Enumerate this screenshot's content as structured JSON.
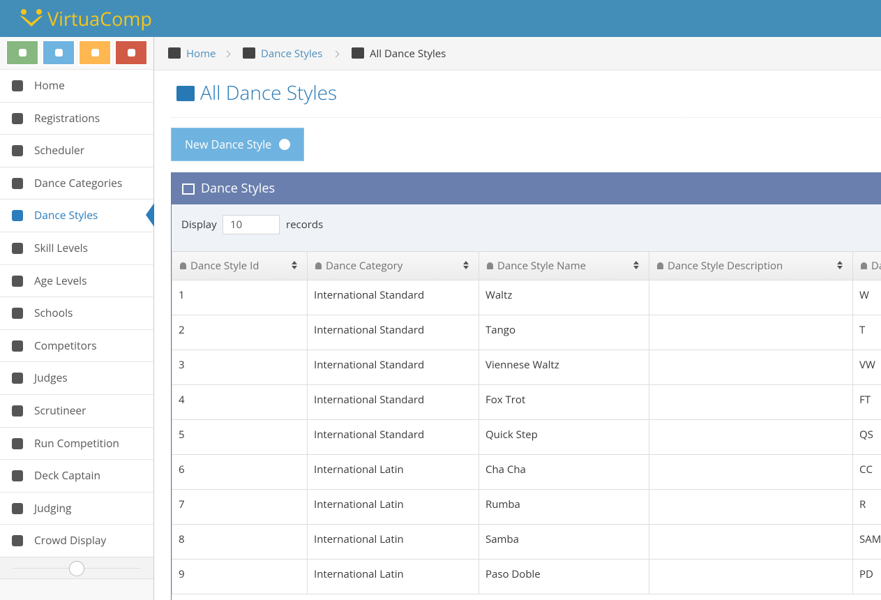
{
  "header": {
    "brand": "VirtuaComp"
  },
  "sidebar": {
    "items": [
      "Home",
      "Registrations",
      "Scheduler",
      "Dance Categories",
      "Dance Styles",
      "Skill Levels",
      "Age Levels",
      "Schools",
      "Competitors",
      "Judges",
      "Scrutineer",
      "Run Competition",
      "Deck Captain",
      "Judging",
      "Crowd Display"
    ],
    "active": "Dance Styles"
  },
  "breadcrumb": [
    "Home",
    "Dance Styles",
    "All Dance Styles"
  ],
  "page_title": "All Dance Styles",
  "new_button": "New Dance Style",
  "panel": {
    "title": "Dance Styles",
    "display_label": "Display",
    "page_size": 10,
    "records_label": "records"
  },
  "table": {
    "columns": [
      "Dance Style Id",
      "Dance Category",
      "Dance Style Name",
      "Dance Style Description",
      "Da"
    ],
    "rows": [
      {
        "id": 1,
        "category": "International Standard",
        "name": "Waltz",
        "abbr": "W"
      },
      {
        "id": 2,
        "category": "International Standard",
        "name": "Tango",
        "abbr": "T"
      },
      {
        "id": 3,
        "category": "International Standard",
        "name": "Viennese Waltz",
        "abbr": "VW"
      },
      {
        "id": 4,
        "category": "International Standard",
        "name": "Fox Trot",
        "abbr": "FT"
      },
      {
        "id": 5,
        "category": "International Standard",
        "name": "Quick Step",
        "abbr": "QS"
      },
      {
        "id": 6,
        "category": "International Latin",
        "name": "Cha Cha",
        "abbr": "CC"
      },
      {
        "id": 7,
        "category": "International Latin",
        "name": "Rumba",
        "abbr": "R"
      },
      {
        "id": 8,
        "category": "International Latin",
        "name": "Samba",
        "abbr": "SAM"
      },
      {
        "id": 9,
        "category": "International Latin",
        "name": "Paso Doble",
        "abbr": "PD"
      }
    ]
  }
}
